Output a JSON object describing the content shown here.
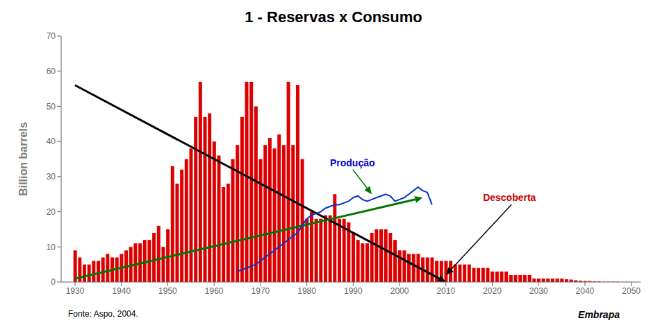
{
  "chart_data": {
    "type": "bar",
    "title": "1 - Reservas x Consumo",
    "ylabel": "Billion barrels",
    "x": [
      1930,
      1931,
      1932,
      1933,
      1934,
      1935,
      1936,
      1937,
      1938,
      1939,
      1940,
      1941,
      1942,
      1943,
      1944,
      1945,
      1946,
      1947,
      1948,
      1949,
      1950,
      1951,
      1952,
      1953,
      1954,
      1955,
      1956,
      1957,
      1958,
      1959,
      1960,
      1961,
      1962,
      1963,
      1964,
      1965,
      1966,
      1967,
      1968,
      1969,
      1970,
      1971,
      1972,
      1973,
      1974,
      1975,
      1976,
      1977,
      1978,
      1979,
      1980,
      1981,
      1982,
      1983,
      1984,
      1985,
      1986,
      1987,
      1988,
      1989,
      1990,
      1991,
      1992,
      1993,
      1994,
      1995,
      1996,
      1997,
      1998,
      1999,
      2000,
      2001,
      2002,
      2003,
      2004,
      2005,
      2006,
      2007,
      2008,
      2009,
      2010,
      2011,
      2012,
      2013,
      2014,
      2015,
      2016,
      2017,
      2018,
      2019,
      2020,
      2021,
      2022,
      2023,
      2024,
      2025,
      2026,
      2027,
      2028,
      2029,
      2030,
      2031,
      2032,
      2033,
      2034,
      2035,
      2036,
      2037,
      2038,
      2039,
      2040,
      2041,
      2042,
      2043,
      2044,
      2045,
      2046,
      2047,
      2048,
      2049,
      2050
    ],
    "values": [
      9,
      7,
      5,
      5,
      6,
      6,
      7,
      8,
      7,
      7,
      8,
      9,
      10,
      11,
      11,
      12,
      12,
      14,
      16,
      10,
      15,
      33,
      28,
      32,
      35,
      38,
      47,
      57,
      47,
      48,
      40,
      36,
      27,
      28,
      35,
      39,
      47,
      57,
      57,
      50,
      35,
      39,
      41,
      38,
      42,
      39,
      57,
      39,
      56,
      35,
      18,
      20,
      18,
      18,
      19,
      19,
      25,
      18,
      18,
      17,
      14,
      12,
      11,
      11,
      14,
      15,
      15,
      15,
      14,
      12,
      9,
      9,
      8,
      8,
      8,
      7,
      7,
      7,
      6,
      6,
      6,
      6,
      5,
      5,
      5,
      5,
      4,
      4,
      4,
      4,
      3,
      3,
      3,
      3,
      2,
      2,
      2,
      2,
      2,
      1,
      1,
      1,
      1,
      1,
      1,
      1,
      0.8,
      0.7,
      0.5,
      0.4,
      0.3,
      0.3,
      0.2,
      0.2,
      0.1,
      0.1,
      0.1,
      0.1,
      0.05,
      0.05,
      0.02
    ],
    "color": "#dd0000",
    "xlim": [
      1927,
      2052
    ],
    "ylim": [
      0,
      70
    ],
    "xticks": [
      1930,
      1940,
      1950,
      1960,
      1970,
      1980,
      1990,
      2000,
      2010,
      2020,
      2030,
      2040,
      2050
    ],
    "yticks": [
      0,
      10,
      20,
      30,
      40,
      50,
      60,
      70
    ],
    "grid": false,
    "lines": [
      {
        "x": [
          1930,
          2010
        ],
        "y": [
          56,
          0
        ],
        "color": "#000000",
        "marker": "arrow"
      },
      {
        "x": [
          1930,
          2005
        ],
        "y": [
          1,
          24
        ],
        "color": "#007700",
        "marker": "arrow"
      },
      {
        "x": [
          1965,
          1966,
          1967,
          1968,
          1969,
          1970,
          1971,
          1972,
          1973,
          1974,
          1975,
          1976,
          1977,
          1978,
          1979,
          1980,
          1981,
          1982,
          1983,
          1984,
          1985,
          1986,
          1987,
          1988,
          1989,
          1990,
          1991,
          1992,
          1993,
          1994,
          1995,
          1996,
          1997,
          1998,
          1999,
          2000,
          2001,
          2002,
          2003,
          2004,
          2005,
          2006,
          2007
        ],
        "y": [
          3,
          3.5,
          4,
          4.5,
          5,
          6,
          7,
          8,
          9,
          10,
          11,
          12,
          13,
          14,
          16,
          18,
          19,
          19.5,
          20,
          21,
          21.5,
          22,
          22,
          22.5,
          23,
          24,
          24.5,
          23.5,
          23,
          23.5,
          24,
          24.5,
          25,
          24.5,
          23,
          23.5,
          24,
          25,
          26,
          27,
          26,
          25.5,
          22
        ],
        "color": "#0033cc"
      }
    ],
    "annotations": [
      {
        "text": "Produção",
        "x": 1985,
        "y": 33,
        "arrow_x": 1994,
        "arrow_y": 25,
        "color": "#0000cc",
        "arrow_color": "#007700"
      },
      {
        "text": "Descoberta",
        "x": 2018,
        "y": 23,
        "arrow_x": 2010,
        "arrow_y": 2,
        "color": "#cc0000",
        "arrow_color": "#000000"
      }
    ],
    "footer": "Fonte: Aspo, 2004.",
    "branding": "Embrapa"
  }
}
